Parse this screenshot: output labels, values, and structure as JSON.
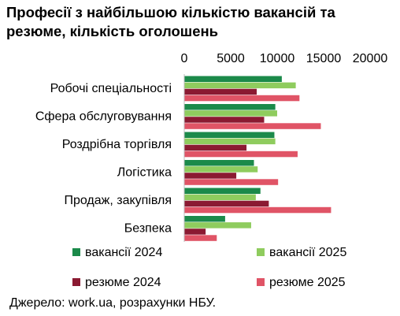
{
  "title_line1": "Професії з найбільшою кількістю вакансій та",
  "title_line2": "резюме, кількість оголошень",
  "source": "Джерело: work.ua, розрахунки НБУ.",
  "chart_data": {
    "type": "bar",
    "orientation": "horizontal",
    "title": "Професії з найбільшою кількістю вакансій та резюме, кількість оголошень",
    "categories": [
      "Робочі спеціальності",
      "Сфера обслуговування",
      "Роздрібна торгівля",
      "Логістика",
      "Продаж, закупівля",
      "Безпека"
    ],
    "series": [
      {
        "name": "вакансії 2024",
        "color": "#1b8a4a",
        "values": [
          10500,
          9800,
          9700,
          7500,
          8200,
          4400
        ]
      },
      {
        "name": "вакансії 2025",
        "color": "#8fcc5e",
        "values": [
          12000,
          10000,
          9800,
          7900,
          7700,
          7200
        ]
      },
      {
        "name": "резюме 2024",
        "color": "#8b1a32",
        "values": [
          7800,
          8600,
          6700,
          5600,
          9100,
          2300
        ]
      },
      {
        "name": "резюме 2025",
        "color": "#e05466",
        "values": [
          12400,
          14700,
          12200,
          10100,
          15800,
          3500
        ]
      }
    ],
    "xlim": [
      0,
      20000
    ],
    "xticks": [
      "0",
      "5000",
      "10000",
      "15000",
      "20000"
    ],
    "xaxis_position": "top",
    "grid": false,
    "legend_position": "bottom"
  }
}
